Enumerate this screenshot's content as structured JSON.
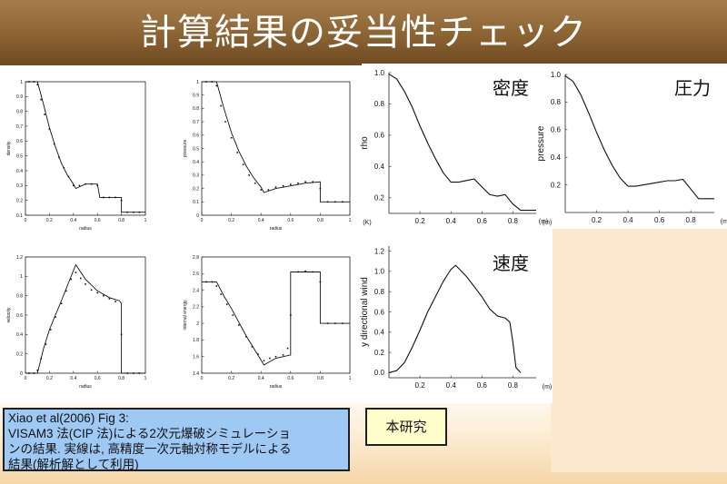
{
  "slide": {
    "title": "計算結果の妥当性チェック"
  },
  "caption": {
    "line1": "Xiao et al(2006) Fig 3:",
    "line2": " VISAM3 法(CIP 法)による2次元爆破シミュレーショ",
    "line3": "ンの結果. 実線は, 高精度一次元軸対称モデルによる",
    "line4": "結果(解析解として利用)"
  },
  "study_label": "本研究",
  "chart_data": [
    {
      "type": "line",
      "ylabel": "density",
      "xlabel": "radius",
      "xlim": [
        0,
        1
      ],
      "ylim": [
        0.1,
        1.0
      ],
      "xticks": [
        "0",
        "0.2",
        "0.4",
        "0.6",
        "0.8",
        "1"
      ],
      "yticks": [
        "0.1",
        "0.2",
        "0.3",
        "0.4",
        "0.5",
        "0.6",
        "0.7",
        "0.8",
        "0.9",
        "1"
      ],
      "series": [
        {
          "style": "line",
          "x": [
            0,
            0.1,
            0.15,
            0.2,
            0.25,
            0.3,
            0.35,
            0.4,
            0.42,
            0.5,
            0.6,
            0.62,
            0.8,
            0.8,
            1.0
          ],
          "y": [
            1.0,
            1.0,
            0.85,
            0.69,
            0.56,
            0.45,
            0.37,
            0.31,
            0.28,
            0.31,
            0.31,
            0.22,
            0.22,
            0.12,
            0.12
          ]
        },
        {
          "style": "points",
          "x": [
            0.03,
            0.07,
            0.1,
            0.13,
            0.16,
            0.2,
            0.24,
            0.28,
            0.32,
            0.36,
            0.4,
            0.45,
            0.5,
            0.55,
            0.6,
            0.65,
            0.7,
            0.75,
            0.8,
            0.85,
            0.9,
            0.95
          ],
          "y": [
            1.0,
            1.0,
            0.98,
            0.88,
            0.78,
            0.68,
            0.58,
            0.49,
            0.42,
            0.36,
            0.3,
            0.3,
            0.31,
            0.31,
            0.3,
            0.22,
            0.22,
            0.22,
            0.2,
            0.12,
            0.12,
            0.12
          ]
        }
      ]
    },
    {
      "type": "line",
      "ylabel": "pressure",
      "xlabel": "radius",
      "xlim": [
        0,
        1
      ],
      "ylim": [
        0,
        1.0
      ],
      "xticks": [
        "0",
        "0.2",
        "0.4",
        "0.6",
        "0.8",
        "1"
      ],
      "yticks": [
        "0",
        "0.1",
        "0.2",
        "0.3",
        "0.4",
        "0.5",
        "0.6",
        "0.7",
        "0.8",
        "0.9",
        "1"
      ],
      "series": [
        {
          "style": "line",
          "x": [
            0,
            0.1,
            0.15,
            0.2,
            0.25,
            0.3,
            0.35,
            0.4,
            0.42,
            0.5,
            0.6,
            0.7,
            0.8,
            0.8,
            1.0
          ],
          "y": [
            1.0,
            1.0,
            0.8,
            0.62,
            0.48,
            0.37,
            0.28,
            0.21,
            0.17,
            0.2,
            0.22,
            0.24,
            0.25,
            0.1,
            0.1
          ]
        },
        {
          "style": "points",
          "x": [
            0.03,
            0.07,
            0.1,
            0.13,
            0.16,
            0.2,
            0.24,
            0.28,
            0.32,
            0.36,
            0.4,
            0.45,
            0.5,
            0.55,
            0.6,
            0.65,
            0.7,
            0.75,
            0.8,
            0.85,
            0.9,
            0.95
          ],
          "y": [
            1.0,
            1.0,
            0.97,
            0.82,
            0.7,
            0.58,
            0.47,
            0.38,
            0.3,
            0.24,
            0.19,
            0.19,
            0.21,
            0.22,
            0.23,
            0.24,
            0.25,
            0.25,
            0.2,
            0.1,
            0.1,
            0.1
          ]
        }
      ]
    },
    {
      "type": "line",
      "ylabel": "velocity",
      "xlabel": "radius",
      "xlim": [
        0,
        1
      ],
      "ylim": [
        0,
        1.2
      ],
      "xticks": [
        "0",
        "0.2",
        "0.4",
        "0.6",
        "0.8",
        "1"
      ],
      "yticks": [
        "0",
        "0.2",
        "0.4",
        "0.6",
        "0.8",
        "1",
        "1.2"
      ],
      "series": [
        {
          "style": "line",
          "x": [
            0,
            0.1,
            0.15,
            0.2,
            0.3,
            0.42,
            0.5,
            0.6,
            0.7,
            0.78,
            0.8,
            0.8,
            1.0
          ],
          "y": [
            0,
            0,
            0.25,
            0.45,
            0.75,
            1.12,
            0.97,
            0.85,
            0.78,
            0.75,
            0.72,
            0,
            0
          ]
        },
        {
          "style": "points",
          "x": [
            0.03,
            0.07,
            0.1,
            0.13,
            0.17,
            0.21,
            0.25,
            0.3,
            0.34,
            0.38,
            0.42,
            0.46,
            0.5,
            0.55,
            0.6,
            0.65,
            0.7,
            0.75,
            0.8,
            0.85,
            0.9,
            0.95
          ],
          "y": [
            0,
            0,
            0.03,
            0.15,
            0.3,
            0.45,
            0.58,
            0.72,
            0.85,
            0.97,
            1.04,
            0.98,
            0.92,
            0.86,
            0.83,
            0.8,
            0.77,
            0.74,
            0.4,
            0,
            0,
            0
          ]
        }
      ]
    },
    {
      "type": "line",
      "ylabel": "internal energy",
      "xlabel": "radius",
      "xlim": [
        0,
        1
      ],
      "ylim": [
        1.4,
        2.8
      ],
      "xticks": [
        "0",
        "0.2",
        "0.4",
        "0.6",
        "0.8",
        "1"
      ],
      "yticks": [
        "1.4",
        "1.6",
        "1.8",
        "2",
        "2.2",
        "2.4",
        "2.6",
        "2.8"
      ],
      "series": [
        {
          "style": "line",
          "x": [
            0,
            0.1,
            0.15,
            0.2,
            0.3,
            0.42,
            0.5,
            0.6,
            0.6,
            0.8,
            0.8,
            1.0
          ],
          "y": [
            2.5,
            2.5,
            2.33,
            2.18,
            1.85,
            1.5,
            1.58,
            1.62,
            2.62,
            2.62,
            2.0,
            2.0
          ]
        },
        {
          "style": "points",
          "x": [
            0.03,
            0.07,
            0.1,
            0.13,
            0.17,
            0.21,
            0.25,
            0.3,
            0.34,
            0.38,
            0.42,
            0.46,
            0.5,
            0.55,
            0.58,
            0.6,
            0.65,
            0.7,
            0.75,
            0.8,
            0.85,
            0.9,
            0.95
          ],
          "y": [
            2.5,
            2.5,
            2.45,
            2.35,
            2.23,
            2.1,
            1.98,
            1.84,
            1.72,
            1.63,
            1.55,
            1.58,
            1.6,
            1.62,
            1.7,
            2.1,
            2.62,
            2.63,
            2.62,
            2.5,
            2.0,
            2.0,
            2.0
          ]
        }
      ]
    },
    {
      "type": "line",
      "title": "密度",
      "ylabel": "rho",
      "xunit": "(m)",
      "yunit": "(K)",
      "xlim": [
        0,
        0.95
      ],
      "ylim": [
        0.1,
        1.0
      ],
      "xticks": [
        "0.2",
        "0.4",
        "0.6",
        "0.8"
      ],
      "yticks": [
        "0.2",
        "0.4",
        "0.6",
        "0.8",
        "1.0"
      ],
      "series": [
        {
          "style": "line",
          "x": [
            0,
            0.05,
            0.1,
            0.15,
            0.2,
            0.25,
            0.3,
            0.35,
            0.4,
            0.45,
            0.5,
            0.55,
            0.6,
            0.65,
            0.7,
            0.75,
            0.8,
            0.85,
            0.9,
            0.95
          ],
          "y": [
            0.99,
            0.96,
            0.88,
            0.78,
            0.66,
            0.55,
            0.45,
            0.36,
            0.3,
            0.3,
            0.31,
            0.32,
            0.27,
            0.22,
            0.21,
            0.22,
            0.16,
            0.12,
            0.12,
            0.12
          ]
        }
      ]
    },
    {
      "type": "line",
      "title": "圧力",
      "ylabel": "pressure",
      "xunit": "(m)",
      "yunit": "(m)",
      "xlim": [
        0,
        0.95
      ],
      "ylim": [
        0,
        1.0
      ],
      "xticks": [
        "0.2",
        "0.4",
        "0.6",
        "0.8"
      ],
      "yticks": [
        "0.2",
        "0.4",
        "0.6",
        "0.8",
        "1.0"
      ],
      "series": [
        {
          "style": "line",
          "x": [
            0,
            0.05,
            0.1,
            0.15,
            0.2,
            0.25,
            0.3,
            0.35,
            0.4,
            0.45,
            0.5,
            0.55,
            0.6,
            0.65,
            0.7,
            0.75,
            0.8,
            0.85,
            0.9,
            0.95
          ],
          "y": [
            0.99,
            0.95,
            0.85,
            0.72,
            0.58,
            0.45,
            0.34,
            0.25,
            0.19,
            0.19,
            0.2,
            0.21,
            0.22,
            0.23,
            0.23,
            0.24,
            0.17,
            0.1,
            0.1,
            0.1
          ]
        }
      ]
    },
    {
      "type": "line",
      "title": "速度",
      "ylabel": "y directional wind",
      "xunit": "(m)",
      "xlim": [
        0,
        0.95
      ],
      "ylim": [
        -0.05,
        1.25
      ],
      "xticks": [
        "0.2",
        "0.4",
        "0.6",
        "0.8"
      ],
      "yticks": [
        "0.0",
        "0.2",
        "0.4",
        "0.6",
        "0.8",
        "1.0",
        "1.2"
      ],
      "series": [
        {
          "style": "line",
          "x": [
            0,
            0.05,
            0.1,
            0.15,
            0.2,
            0.25,
            0.3,
            0.35,
            0.4,
            0.43,
            0.45,
            0.5,
            0.55,
            0.6,
            0.65,
            0.7,
            0.75,
            0.78,
            0.8,
            0.82,
            0.85
          ],
          "y": [
            0,
            0.02,
            0.1,
            0.25,
            0.42,
            0.6,
            0.75,
            0.9,
            1.02,
            1.06,
            1.03,
            0.95,
            0.85,
            0.75,
            0.63,
            0.56,
            0.54,
            0.5,
            0.3,
            0.05,
            0.0
          ]
        }
      ]
    }
  ]
}
